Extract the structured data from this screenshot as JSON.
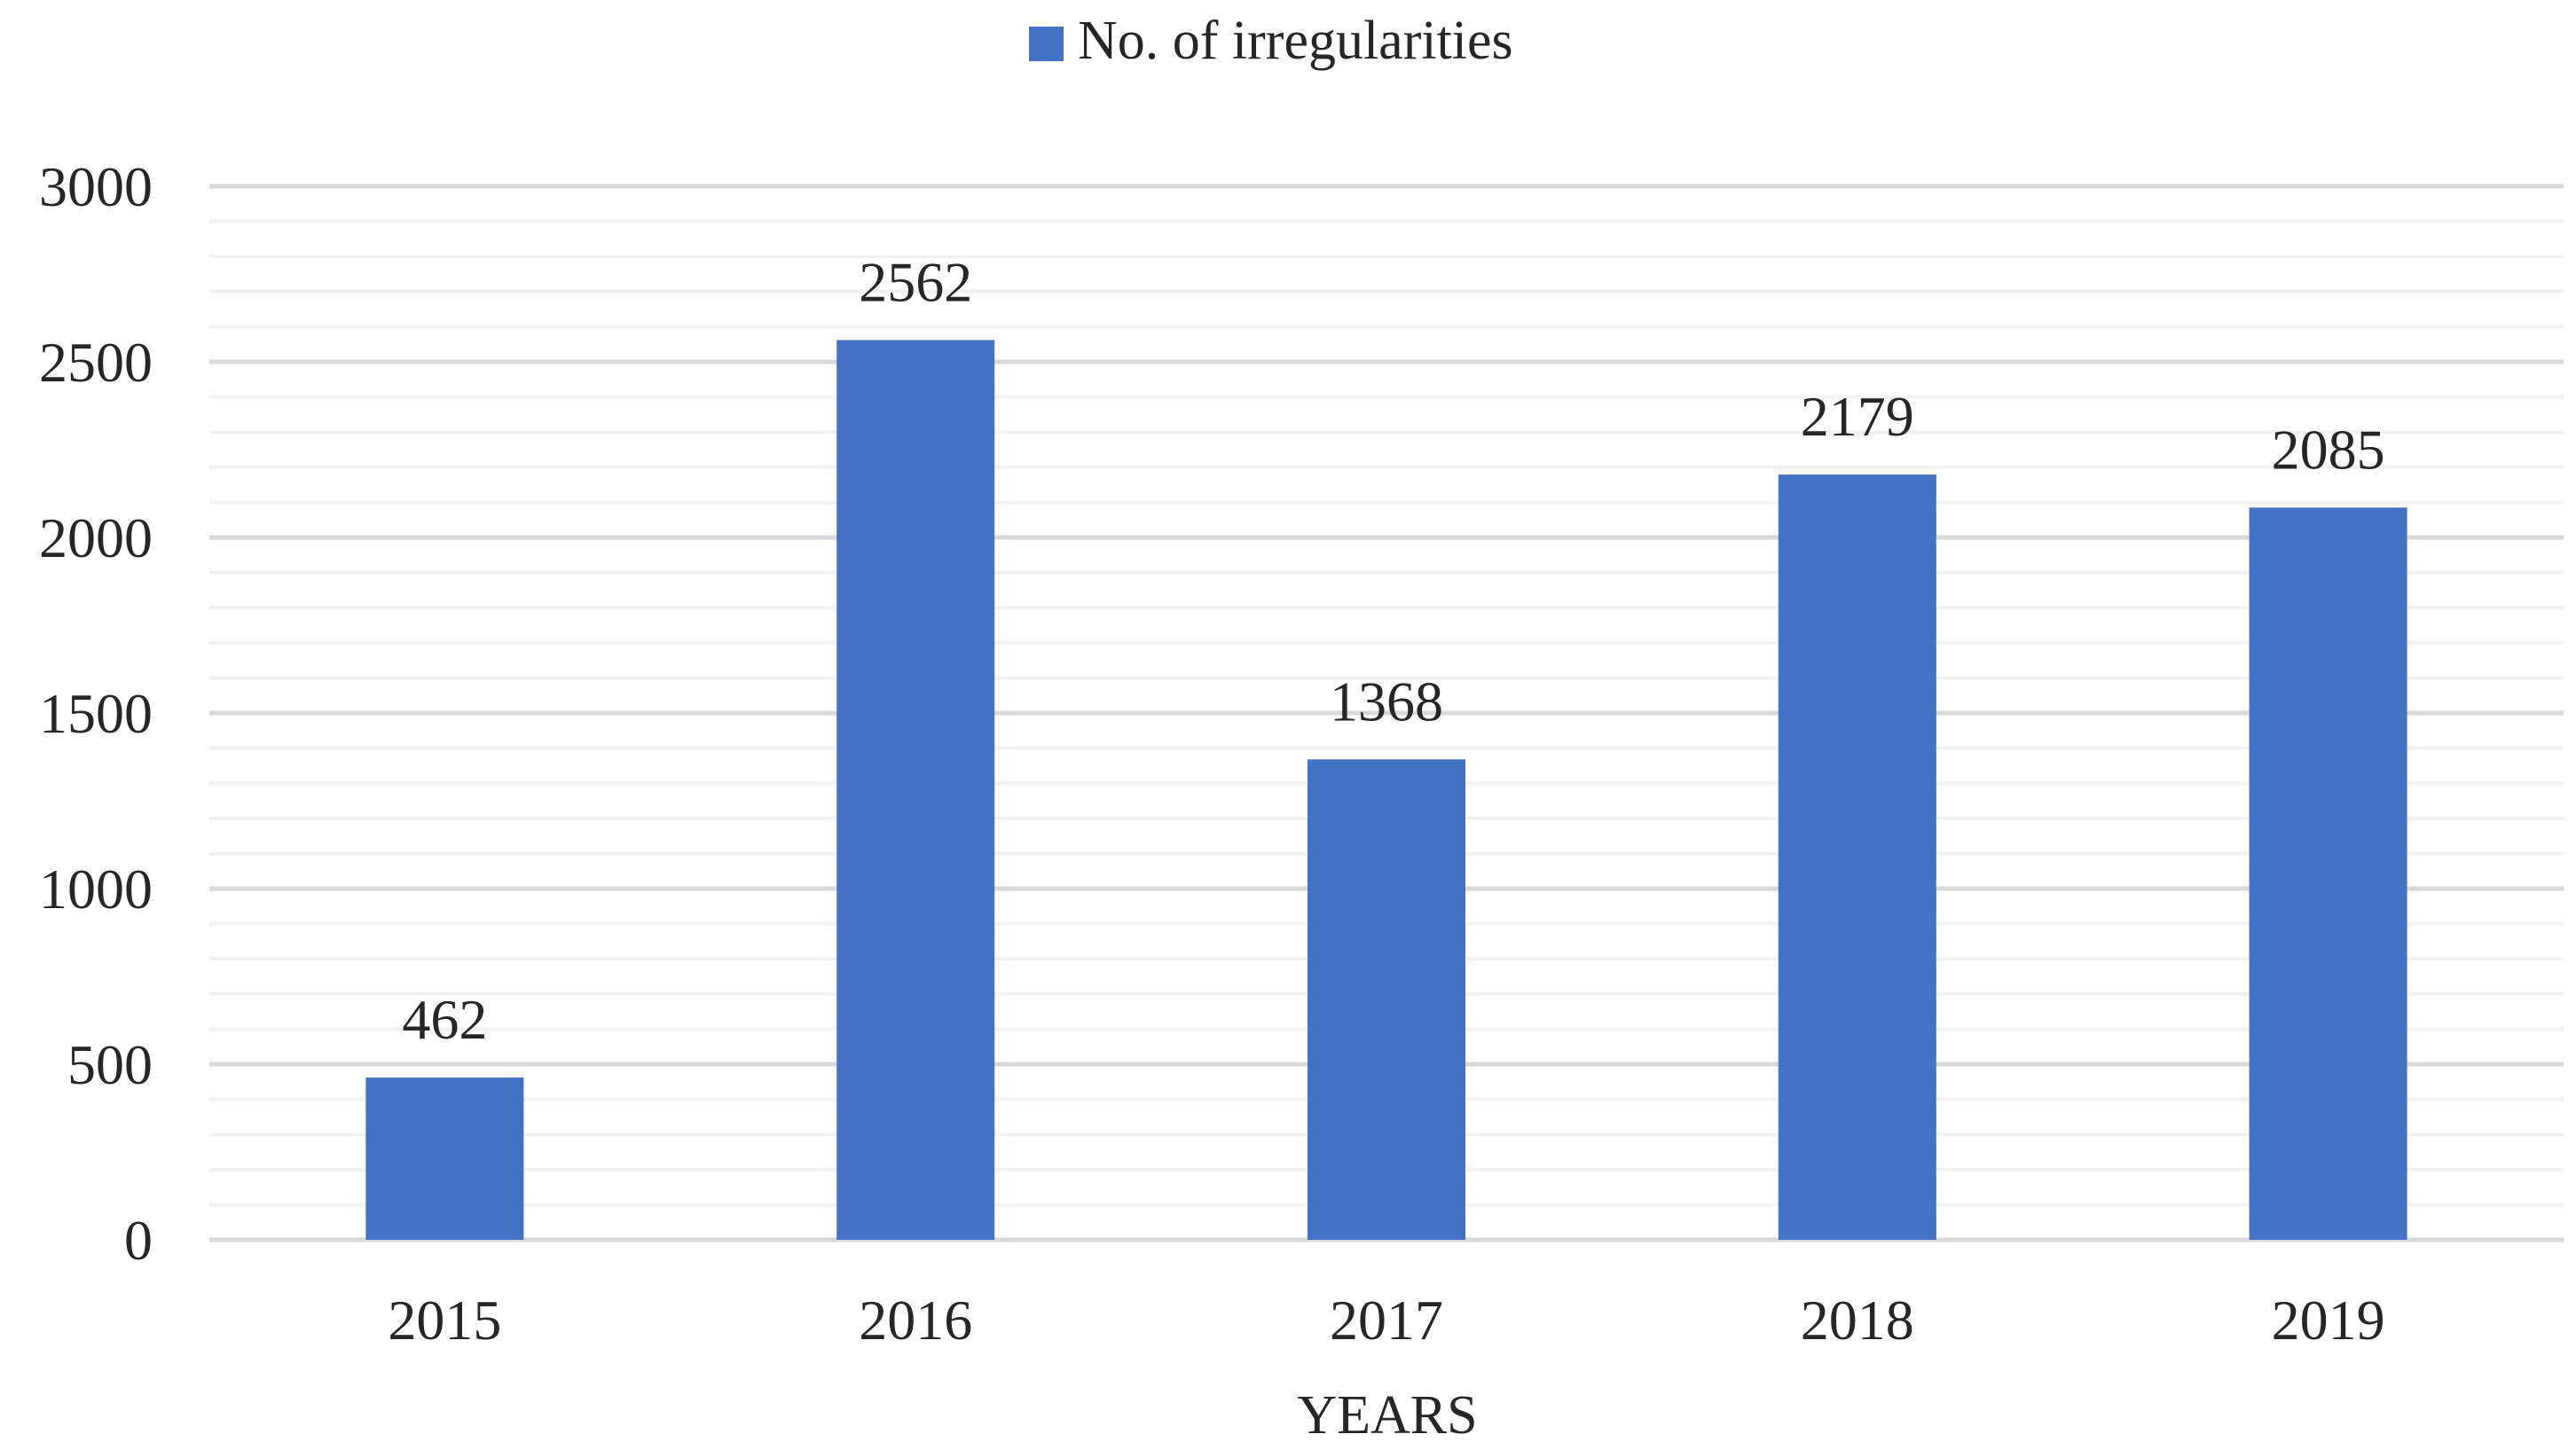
{
  "chart_data": {
    "type": "bar",
    "title": "",
    "xlabel": "YEARS",
    "ylabel": "",
    "categories": [
      "2015",
      "2016",
      "2017",
      "2018",
      "2019"
    ],
    "series": [
      {
        "name": "No. of irregularities",
        "values": [
          462,
          2562,
          1368,
          2179,
          2085
        ]
      }
    ],
    "data_labels": [
      "462",
      "2562",
      "1368",
      "2179",
      "2085"
    ],
    "ylim": [
      0,
      3000
    ],
    "y_ticks": [
      "0",
      "500",
      "1000",
      "1500",
      "2000",
      "2500",
      "3000"
    ],
    "y_tick_values": [
      0,
      500,
      1000,
      1500,
      2000,
      2500,
      3000
    ],
    "minor_grid_step": 100,
    "grid": true,
    "legend_position": "top-center",
    "colors": {
      "bar": "#4472C4",
      "major_grid": "#D9D9D9",
      "minor_grid": "#F2F2F2",
      "text": "#262626"
    }
  }
}
